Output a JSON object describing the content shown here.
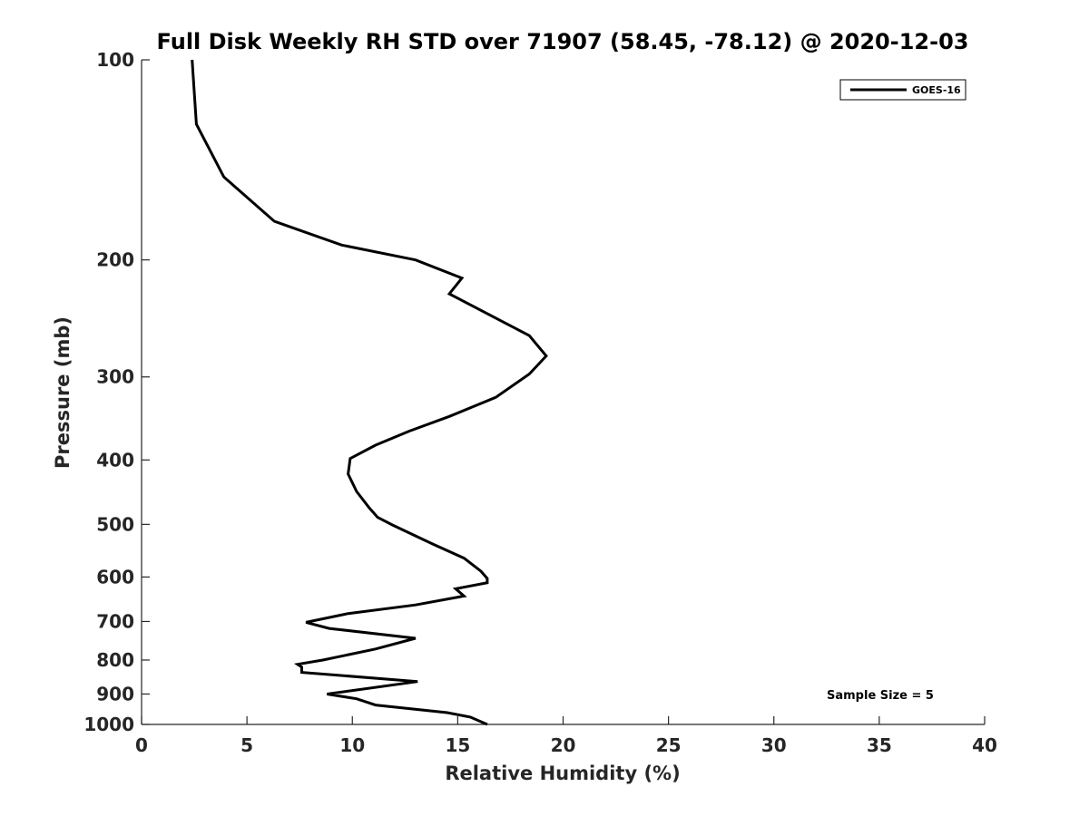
{
  "chart_data": {
    "type": "line",
    "title": "Full Disk Weekly RH STD over 71907 (58.45, -78.12) @ 2020-12-03",
    "xlabel": "Relative Humidity (%)",
    "ylabel": "Pressure (mb)",
    "xlim": [
      0,
      40
    ],
    "ylim": [
      100,
      1000
    ],
    "yscale": "log",
    "y_reversed": true,
    "grid": false,
    "xticks": [
      0,
      5,
      10,
      15,
      20,
      25,
      30,
      35,
      40
    ],
    "yticks": [
      100,
      200,
      300,
      400,
      500,
      600,
      700,
      800,
      900,
      1000
    ],
    "legend": {
      "position": "top-right",
      "entries": [
        "GOES-16"
      ]
    },
    "annotation": "Sample Size = 5",
    "series": [
      {
        "name": "GOES-16",
        "color": "#000000",
        "points": [
          [
            2.4,
            100
          ],
          [
            2.6,
            125
          ],
          [
            3.9,
            150
          ],
          [
            6.3,
            175
          ],
          [
            9.5,
            190
          ],
          [
            13.0,
            200
          ],
          [
            15.2,
            213
          ],
          [
            14.6,
            225
          ],
          [
            18.4,
            260
          ],
          [
            19.2,
            279
          ],
          [
            18.4,
            297
          ],
          [
            16.8,
            322
          ],
          [
            14.6,
            344
          ],
          [
            12.7,
            362
          ],
          [
            11.1,
            380
          ],
          [
            9.9,
            398
          ],
          [
            9.8,
            420
          ],
          [
            10.2,
            446
          ],
          [
            10.8,
            472
          ],
          [
            11.2,
            488
          ],
          [
            11.9,
            501
          ],
          [
            13.8,
            535
          ],
          [
            15.3,
            562
          ],
          [
            16.1,
            588
          ],
          [
            16.4,
            603
          ],
          [
            16.4,
            612
          ],
          [
            14.9,
            625
          ],
          [
            15.3,
            641
          ],
          [
            13.0,
            661
          ],
          [
            9.8,
            681
          ],
          [
            7.8,
            702
          ],
          [
            8.9,
            717
          ],
          [
            13.0,
            742
          ],
          [
            11.1,
            770
          ],
          [
            8.6,
            800
          ],
          [
            7.4,
            812
          ],
          [
            7.6,
            820
          ],
          [
            7.6,
            835
          ],
          [
            13.1,
            862
          ],
          [
            8.8,
            900
          ],
          [
            10.2,
            915
          ],
          [
            11.1,
            935
          ],
          [
            14.5,
            960
          ],
          [
            15.6,
            975
          ],
          [
            16.4,
            1000
          ]
        ]
      }
    ]
  }
}
